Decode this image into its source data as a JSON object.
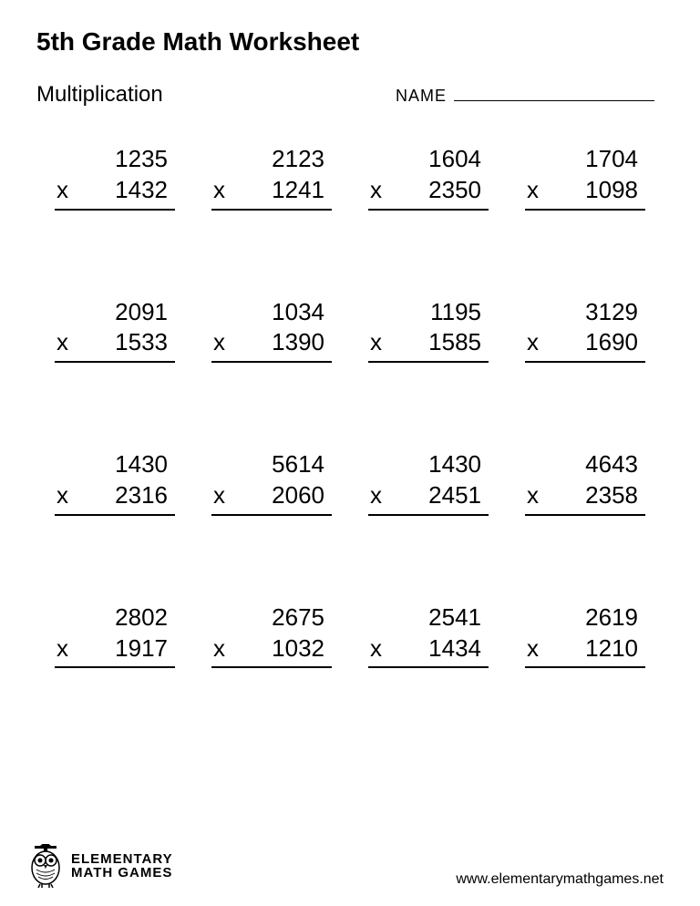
{
  "title": "5th Grade Math Worksheet",
  "section": "Multiplication",
  "nameLabel": "NAME",
  "operator": "x",
  "problems": [
    {
      "a": "1235",
      "b": "1432"
    },
    {
      "a": "2123",
      "b": "1241"
    },
    {
      "a": "1604",
      "b": "2350"
    },
    {
      "a": "1704",
      "b": "1098"
    },
    {
      "a": "2091",
      "b": "1533"
    },
    {
      "a": "1034",
      "b": "1390"
    },
    {
      "a": "1195",
      "b": "1585"
    },
    {
      "a": "3129",
      "b": "1690"
    },
    {
      "a": "1430",
      "b": "2316"
    },
    {
      "a": "5614",
      "b": "2060"
    },
    {
      "a": "1430",
      "b": "2451"
    },
    {
      "a": "4643",
      "b": "2358"
    },
    {
      "a": "2802",
      "b": "1917"
    },
    {
      "a": "2675",
      "b": "1032"
    },
    {
      "a": "2541",
      "b": "1434"
    },
    {
      "a": "2619",
      "b": "1210"
    }
  ],
  "logo": {
    "line1": "ELEMENTARY",
    "line2": "MATH GAMES"
  },
  "website": "www.elementarymathgames.net",
  "style": {
    "background": "#ffffff",
    "text_color": "#000000",
    "title_fontsize": 28,
    "section_fontsize": 24,
    "problem_fontsize": 26,
    "columns": 4,
    "rows": 4,
    "underline_color": "#000000",
    "underline_width": 2
  }
}
